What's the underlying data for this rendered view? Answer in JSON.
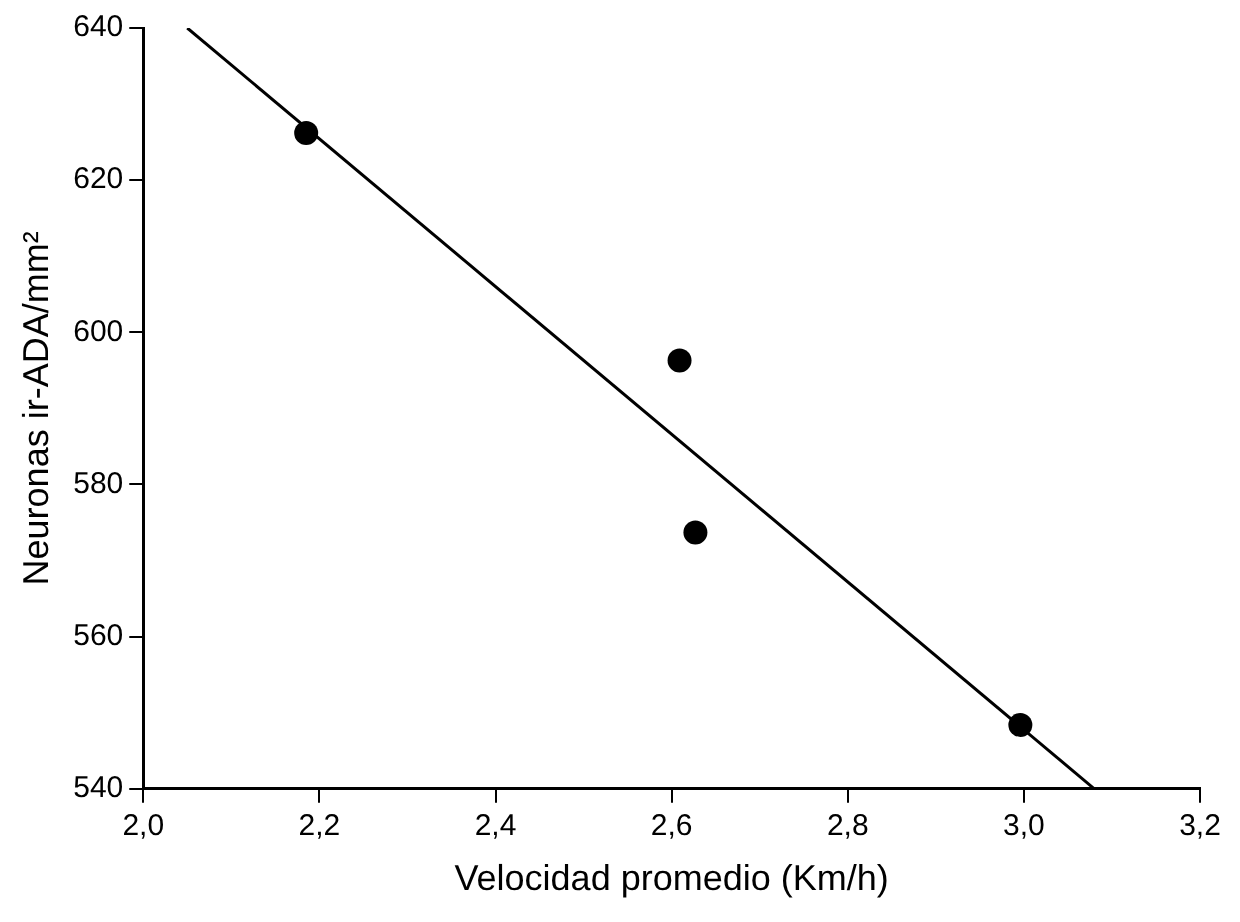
{
  "chart_data": {
    "type": "scatter",
    "xlabel": "Velocidad promedio (Km/h)",
    "ylabel": "Neuronas ir-ADA/mm²",
    "xlim": [
      2.0,
      3.2
    ],
    "xticks": [
      {
        "value": 2.0,
        "label": "2,0"
      },
      {
        "value": 2.2,
        "label": "2,2"
      },
      {
        "value": 2.4,
        "label": "2,4"
      },
      {
        "value": 2.6,
        "label": "2,6"
      },
      {
        "value": 2.8,
        "label": "2,8"
      },
      {
        "value": 3.0,
        "label": "3,0"
      },
      {
        "value": 3.2,
        "label": "3,2"
      }
    ],
    "ylim": [
      540,
      640
    ],
    "yticks": [
      540,
      560,
      580,
      600,
      620,
      640
    ],
    "grid": false,
    "legend": false,
    "marker": "circle",
    "series": [
      {
        "color": "#000000",
        "x": [
          2.185,
          2.609,
          2.627,
          2.996
        ],
        "values": [
          626.2,
          596.3,
          573.7,
          548.4
        ]
      },
      {
        "type": "line",
        "color": "#000000",
        "x": [
          2.05,
          3.08
        ],
        "values": [
          640,
          540
        ],
        "marker": "none",
        "line_style": "solid"
      }
    ]
  }
}
